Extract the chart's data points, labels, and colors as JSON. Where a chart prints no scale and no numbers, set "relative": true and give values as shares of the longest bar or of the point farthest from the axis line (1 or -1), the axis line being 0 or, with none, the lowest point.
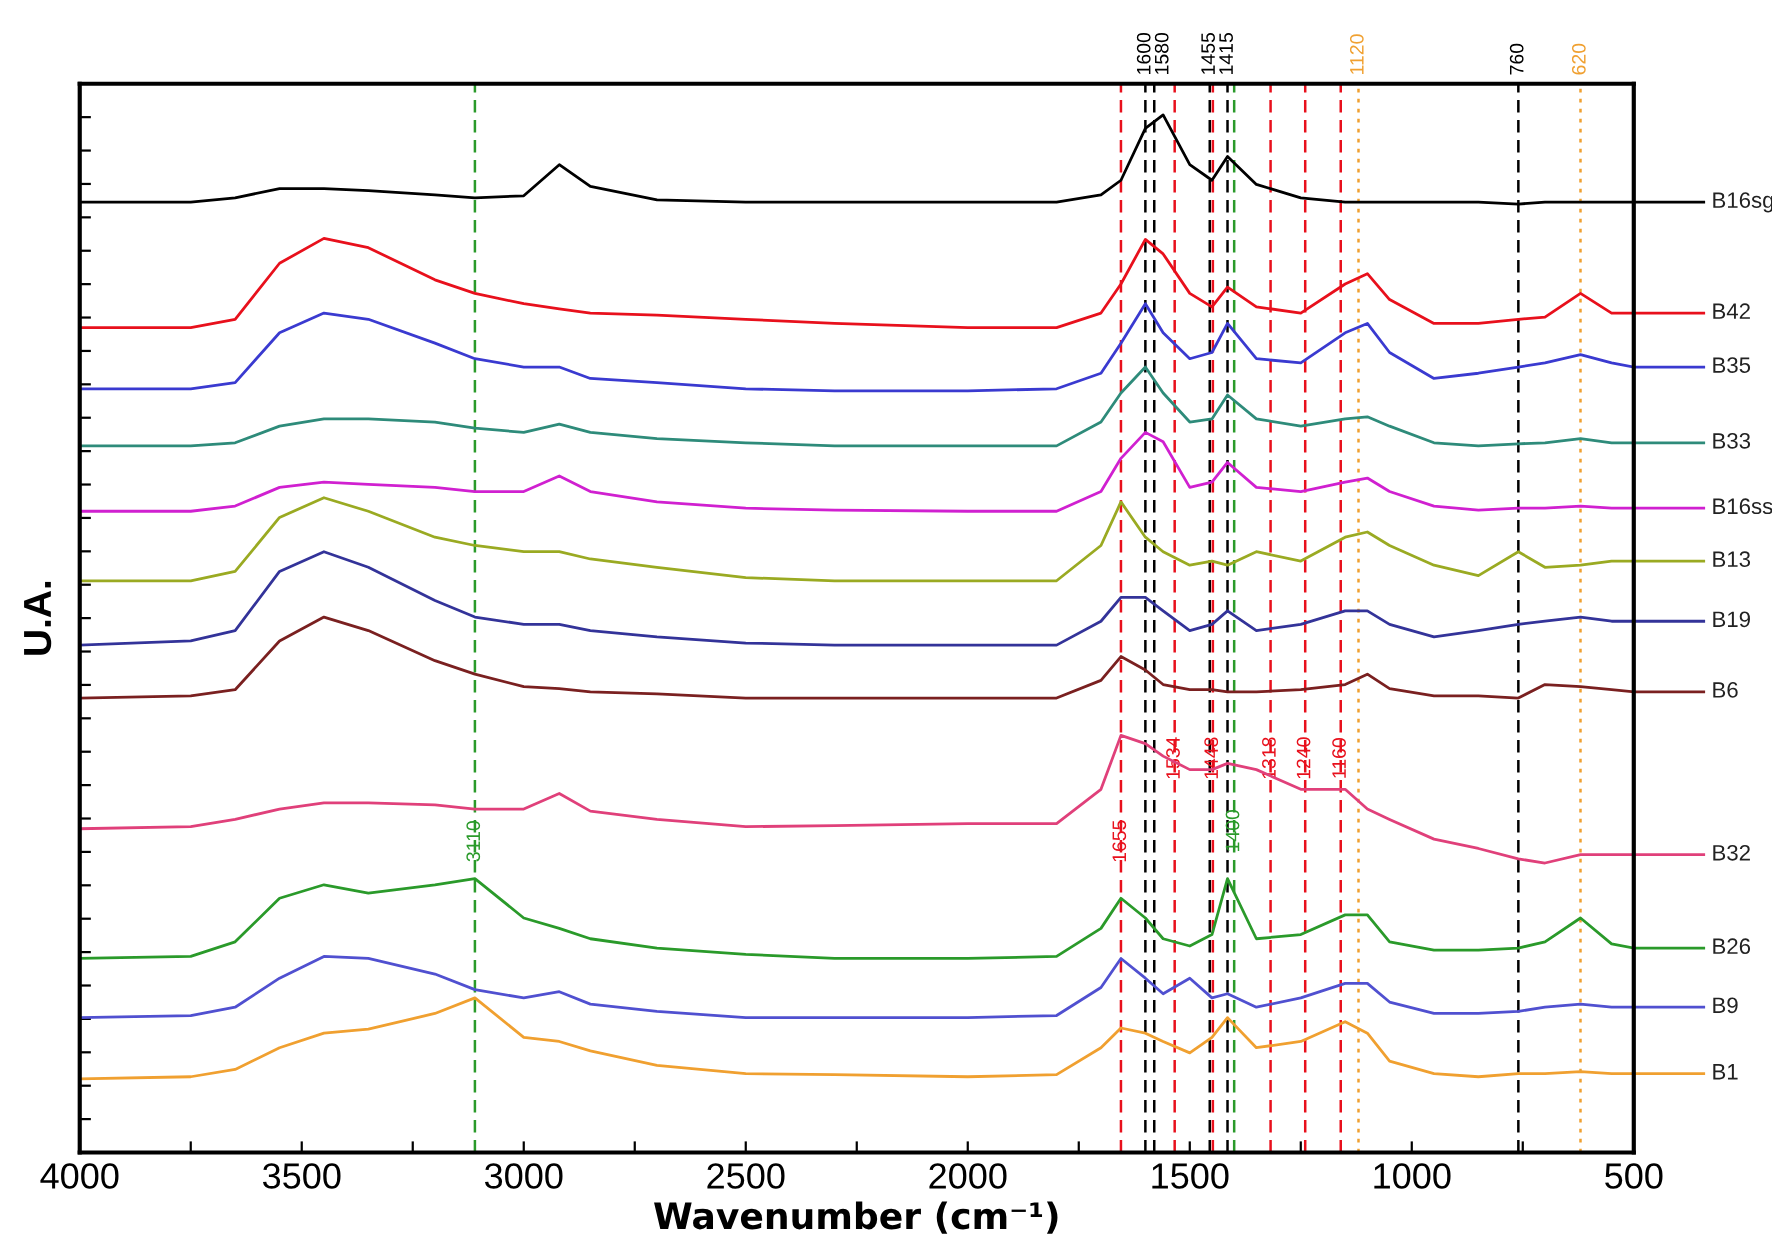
{
  "chart_data": {
    "type": "line",
    "relative": true,
    "xlabel": "Wavenumber (cm⁻¹)",
    "ylabel": "U.A.",
    "x": [
      4000,
      3750,
      3650,
      3550,
      3450,
      3350,
      3200,
      3110,
      3000,
      2920,
      2850,
      2700,
      2500,
      2300,
      2000,
      1800,
      1700,
      1655,
      1600,
      1560,
      1500,
      1450,
      1415,
      1350,
      1250,
      1150,
      1100,
      1050,
      950,
      850,
      760,
      700,
      620,
      550,
      500
    ],
    "xlim": [
      4000,
      500
    ],
    "xticks": [
      4000,
      {
        "value": 3750,
        "label": null
      },
      3500,
      {
        "value": 3250,
        "label": null
      },
      3000,
      {
        "value": 2750,
        "label": null
      },
      2500,
      {
        "value": 2250,
        "label": null
      },
      2000,
      {
        "value": 1750,
        "label": null
      },
      1500,
      {
        "value": 1250,
        "label": null
      },
      1000,
      {
        "value": 750,
        "label": null
      },
      500
    ],
    "legend": "right",
    "grid": false,
    "line_style": "solid",
    "marker": "none",
    "series": [
      {
        "name": "B16sg",
        "color": "#000000",
        "values": [
          0.916,
          0.916,
          0.92,
          0.929,
          0.929,
          0.927,
          0.923,
          0.92,
          0.922,
          0.952,
          0.931,
          0.918,
          0.916,
          0.916,
          0.916,
          0.916,
          0.923,
          0.937,
          0.987,
          1.0,
          0.952,
          0.937,
          0.96,
          0.933,
          0.92,
          0.916,
          0.916,
          0.916,
          0.916,
          0.916,
          0.914,
          0.916,
          0.916,
          0.916,
          0.916
        ]
      },
      {
        "name": "B42",
        "color": "#e8101c",
        "values": [
          0.795,
          0.795,
          0.803,
          0.857,
          0.881,
          0.872,
          0.841,
          0.828,
          0.818,
          0.813,
          0.809,
          0.807,
          0.803,
          0.799,
          0.795,
          0.795,
          0.809,
          0.837,
          0.88,
          0.866,
          0.828,
          0.815,
          0.834,
          0.815,
          0.809,
          0.837,
          0.847,
          0.822,
          0.799,
          0.799,
          0.803,
          0.805,
          0.828,
          0.809,
          0.809
        ]
      },
      {
        "name": "B35",
        "color": "#3a3ad0",
        "values": [
          0.736,
          0.736,
          0.742,
          0.79,
          0.809,
          0.803,
          0.78,
          0.765,
          0.757,
          0.757,
          0.746,
          0.742,
          0.736,
          0.734,
          0.734,
          0.736,
          0.751,
          0.78,
          0.818,
          0.79,
          0.765,
          0.771,
          0.799,
          0.765,
          0.761,
          0.79,
          0.799,
          0.771,
          0.746,
          0.751,
          0.757,
          0.761,
          0.769,
          0.761,
          0.757
        ]
      },
      {
        "name": "B33",
        "color": "#2e8b7a",
        "values": [
          0.681,
          0.681,
          0.684,
          0.7,
          0.707,
          0.707,
          0.704,
          0.698,
          0.694,
          0.702,
          0.694,
          0.688,
          0.684,
          0.681,
          0.681,
          0.681,
          0.704,
          0.732,
          0.757,
          0.732,
          0.704,
          0.707,
          0.73,
          0.707,
          0.7,
          0.707,
          0.709,
          0.7,
          0.684,
          0.681,
          0.683,
          0.684,
          0.688,
          0.684,
          0.684
        ]
      },
      {
        "name": "B16ss",
        "color": "#d020d0",
        "values": [
          0.618,
          0.618,
          0.623,
          0.641,
          0.646,
          0.644,
          0.641,
          0.637,
          0.637,
          0.652,
          0.637,
          0.627,
          0.621,
          0.619,
          0.618,
          0.618,
          0.637,
          0.669,
          0.694,
          0.685,
          0.641,
          0.646,
          0.665,
          0.641,
          0.637,
          0.646,
          0.65,
          0.637,
          0.623,
          0.619,
          0.621,
          0.621,
          0.623,
          0.621,
          0.621
        ]
      },
      {
        "name": "B13",
        "color": "#9aaa22",
        "values": [
          0.551,
          0.551,
          0.56,
          0.612,
          0.631,
          0.618,
          0.593,
          0.585,
          0.579,
          0.579,
          0.572,
          0.564,
          0.554,
          0.551,
          0.551,
          0.551,
          0.585,
          0.627,
          0.593,
          0.579,
          0.566,
          0.57,
          0.566,
          0.579,
          0.57,
          0.593,
          0.598,
          0.585,
          0.566,
          0.556,
          0.579,
          0.564,
          0.566,
          0.57,
          0.57
        ]
      },
      {
        "name": "B19",
        "color": "#333399",
        "values": [
          0.489,
          0.493,
          0.503,
          0.56,
          0.579,
          0.564,
          0.532,
          0.516,
          0.509,
          0.509,
          0.503,
          0.497,
          0.491,
          0.489,
          0.489,
          0.489,
          0.512,
          0.535,
          0.535,
          0.522,
          0.503,
          0.509,
          0.522,
          0.503,
          0.509,
          0.522,
          0.522,
          0.509,
          0.497,
          0.503,
          0.509,
          0.512,
          0.516,
          0.512,
          0.512
        ]
      },
      {
        "name": "B6",
        "color": "#7a2020",
        "values": [
          0.438,
          0.44,
          0.446,
          0.493,
          0.516,
          0.503,
          0.474,
          0.461,
          0.449,
          0.447,
          0.444,
          0.442,
          0.438,
          0.438,
          0.438,
          0.438,
          0.455,
          0.478,
          0.465,
          0.451,
          0.446,
          0.446,
          0.444,
          0.444,
          0.446,
          0.451,
          0.461,
          0.447,
          0.44,
          0.44,
          0.438,
          0.451,
          0.449,
          0.446,
          0.444
        ]
      },
      {
        "name": "B32",
        "color": "#e0407a",
        "values": [
          0.312,
          0.314,
          0.321,
          0.331,
          0.337,
          0.337,
          0.335,
          0.331,
          0.331,
          0.346,
          0.329,
          0.321,
          0.314,
          0.315,
          0.317,
          0.317,
          0.35,
          0.402,
          0.394,
          0.382,
          0.369,
          0.369,
          0.375,
          0.369,
          0.35,
          0.35,
          0.331,
          0.321,
          0.302,
          0.293,
          0.283,
          0.279,
          0.287,
          0.287,
          0.287
        ]
      },
      {
        "name": "B26",
        "color": "#2a9a2a",
        "values": [
          0.187,
          0.189,
          0.203,
          0.245,
          0.258,
          0.25,
          0.258,
          0.264,
          0.226,
          0.216,
          0.206,
          0.197,
          0.191,
          0.187,
          0.187,
          0.189,
          0.216,
          0.245,
          0.226,
          0.206,
          0.199,
          0.21,
          0.264,
          0.206,
          0.21,
          0.229,
          0.229,
          0.203,
          0.195,
          0.195,
          0.197,
          0.203,
          0.226,
          0.201,
          0.197
        ]
      },
      {
        "name": "B9",
        "color": "#5050d0",
        "values": [
          0.13,
          0.132,
          0.14,
          0.168,
          0.189,
          0.187,
          0.172,
          0.157,
          0.149,
          0.155,
          0.143,
          0.136,
          0.13,
          0.13,
          0.13,
          0.132,
          0.159,
          0.187,
          0.168,
          0.153,
          0.168,
          0.149,
          0.153,
          0.14,
          0.149,
          0.163,
          0.163,
          0.145,
          0.134,
          0.134,
          0.136,
          0.14,
          0.143,
          0.14,
          0.14
        ]
      },
      {
        "name": "B1",
        "color": "#f0a030",
        "values": [
          0.071,
          0.073,
          0.08,
          0.101,
          0.115,
          0.119,
          0.134,
          0.149,
          0.111,
          0.107,
          0.098,
          0.084,
          0.076,
          0.075,
          0.073,
          0.075,
          0.101,
          0.12,
          0.115,
          0.107,
          0.096,
          0.111,
          0.13,
          0.101,
          0.107,
          0.126,
          0.115,
          0.088,
          0.076,
          0.073,
          0.076,
          0.076,
          0.078,
          0.076,
          0.076
        ]
      }
    ],
    "ref_lines": [
      {
        "axis": "x",
        "value": 1600,
        "label": "1600",
        "color": "#000000",
        "line_style": "dashed"
      },
      {
        "axis": "x",
        "value": 1580,
        "label": "1580",
        "color": "#000000",
        "line_style": "dashed"
      },
      {
        "axis": "x",
        "value": 1455,
        "label": "1455",
        "color": "#000000",
        "line_style": "dashed"
      },
      {
        "axis": "x",
        "value": 1415,
        "label": "1415",
        "color": "#000000",
        "line_style": "dashed"
      },
      {
        "axis": "x",
        "value": 1120,
        "label": "1120",
        "color": "#f0a030",
        "line_style": "dotted"
      },
      {
        "axis": "x",
        "value": 760,
        "label": "760",
        "color": "#000000",
        "line_style": "dashed"
      },
      {
        "axis": "x",
        "value": 620,
        "label": "620",
        "color": "#f0a030",
        "line_style": "dotted"
      },
      {
        "axis": "x",
        "value": 1655,
        "color": "#e8101c",
        "line_style": "dashed"
      },
      {
        "axis": "x",
        "value": 1534,
        "color": "#e8101c",
        "line_style": "dashed"
      },
      {
        "axis": "x",
        "value": 1448,
        "color": "#e8101c",
        "line_style": "dashed"
      },
      {
        "axis": "x",
        "value": 1318,
        "color": "#e8101c",
        "line_style": "dashed"
      },
      {
        "axis": "x",
        "value": 1240,
        "color": "#e8101c",
        "line_style": "dashed"
      },
      {
        "axis": "x",
        "value": 1160,
        "color": "#e8101c",
        "line_style": "dashed"
      },
      {
        "axis": "x",
        "value": 1400,
        "color": "#2a9a2a",
        "line_style": "dashed"
      },
      {
        "axis": "x",
        "value": 3110,
        "color": "#2a9a2a",
        "line_style": "dashed"
      }
    ],
    "annotations": [
      {
        "text": "1655",
        "x": 1655,
        "y": 0.3
      },
      {
        "text": "1534",
        "x": 1534,
        "y": 0.38
      },
      {
        "text": "1448",
        "x": 1448,
        "y": 0.38
      },
      {
        "text": "1318",
        "x": 1318,
        "y": 0.38
      },
      {
        "text": "1240",
        "x": 1240,
        "y": 0.38
      },
      {
        "text": "1160",
        "x": 1160,
        "y": 0.38
      },
      {
        "text": "1400",
        "x": 1400,
        "y": 0.31
      },
      {
        "text": "3110",
        "x": 3110,
        "y": 0.3
      }
    ]
  }
}
